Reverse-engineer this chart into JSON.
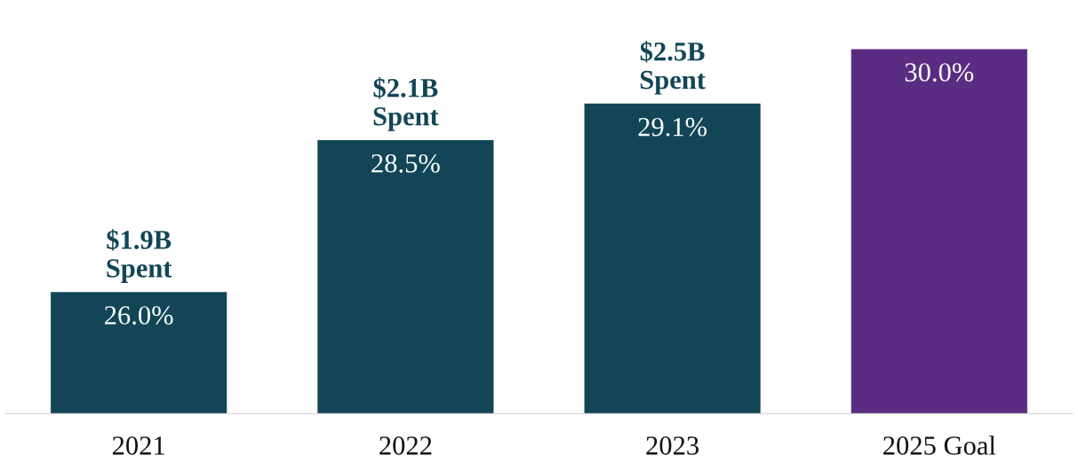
{
  "chart_data": {
    "type": "bar",
    "categories": [
      "2021",
      "2022",
      "2023",
      "2025 Goal"
    ],
    "values": [
      26.0,
      28.5,
      29.1,
      30.0
    ],
    "value_labels": [
      "26.0%",
      "28.5%",
      "29.1%",
      "30.0%"
    ],
    "colors": [
      "#124656",
      "#124656",
      "#124656",
      "#5a2d82"
    ],
    "ylim": [
      24,
      30
    ],
    "tick_labels": "x",
    "grid": false,
    "legend": false,
    "annotations": [
      {
        "text": "$1.9B\nSpent",
        "x": "2021",
        "y": 26.0
      },
      {
        "text": "$2.1B\nSpent",
        "x": "2022",
        "y": 28.5
      },
      {
        "text": "$2.5B\nSpent",
        "x": "2023",
        "y": 29.1
      }
    ]
  }
}
